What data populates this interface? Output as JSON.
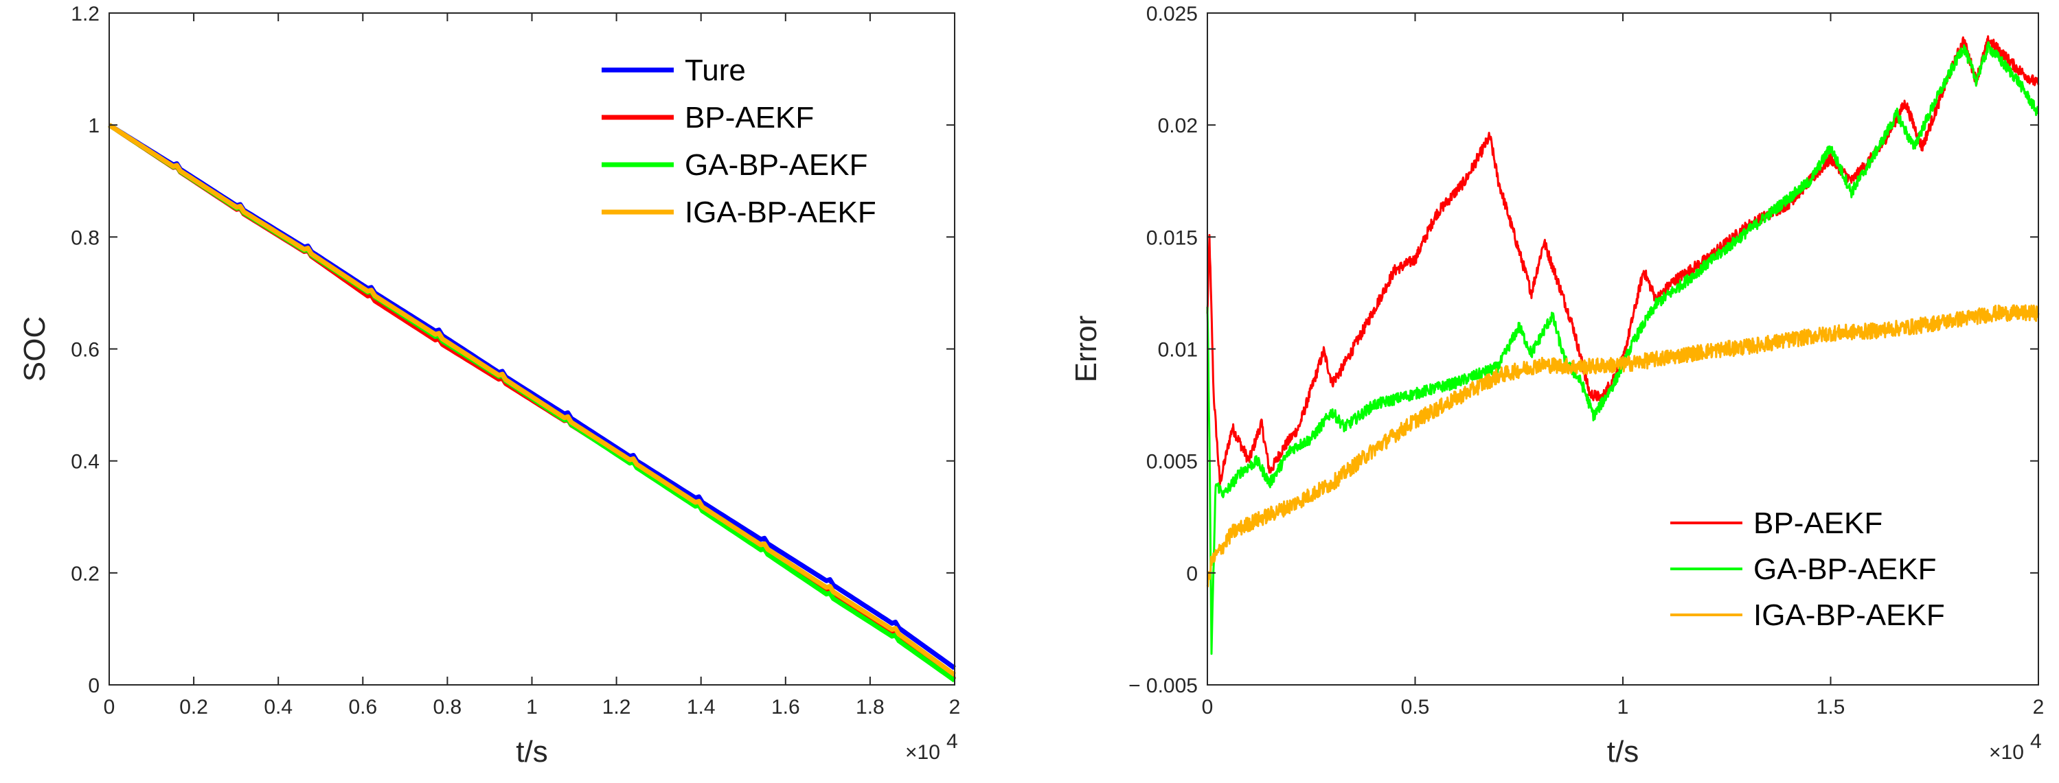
{
  "chart_data": [
    {
      "type": "line",
      "ylabel": "SOC",
      "xlabel": "t/s",
      "x_exponent": "×10",
      "x_exponent_power": "4",
      "xlim": [
        0,
        2
      ],
      "ylim": [
        0,
        1.2
      ],
      "x_ticks": [
        0,
        0.2,
        0.4,
        0.6,
        0.8,
        1,
        1.2,
        1.4,
        1.6,
        1.8,
        2
      ],
      "x_tick_labels": [
        "0",
        "0.2",
        "0.4",
        "0.6",
        "0.8",
        "1",
        "1.2",
        "1.4",
        "1.6",
        "1.8",
        "2"
      ],
      "y_ticks": [
        0,
        0.2,
        0.4,
        0.6,
        0.8,
        1,
        1.2
      ],
      "y_tick_labels": [
        "0",
        "0.2",
        "0.4",
        "0.6",
        "0.8",
        "1",
        "1.2"
      ],
      "legend_position": "top-right",
      "legend": [
        "Ture",
        "BP-AEKF",
        "GA-BP-AEKF",
        "IGA-BP-AEKF"
      ],
      "series": [
        {
          "name": "Ture",
          "color": "#0000ff",
          "x": [
            0,
            0.16,
            0.31,
            0.47,
            0.62,
            0.78,
            0.93,
            1.085,
            1.24,
            1.395,
            1.55,
            1.705,
            1.86,
            2.0
          ],
          "y": [
            1.0,
            0.925,
            0.852,
            0.778,
            0.704,
            0.628,
            0.554,
            0.48,
            0.404,
            0.33,
            0.256,
            0.182,
            0.106,
            0.03
          ]
        },
        {
          "name": "BP-AEKF",
          "color": "#ff0000",
          "x": [
            0,
            0.16,
            0.31,
            0.47,
            0.62,
            0.78,
            0.93,
            1.085,
            1.24,
            1.395,
            1.55,
            1.705,
            1.86,
            2.0
          ],
          "y": [
            1.0,
            0.92,
            0.845,
            0.77,
            0.69,
            0.612,
            0.542,
            0.468,
            0.394,
            0.318,
            0.242,
            0.163,
            0.086,
            0.01
          ]
        },
        {
          "name": "GA-BP-AEKF",
          "color": "#00ff00",
          "x": [
            0,
            0.16,
            0.31,
            0.47,
            0.62,
            0.78,
            0.93,
            1.085,
            1.24,
            1.395,
            1.55,
            1.705,
            1.86,
            2.0
          ],
          "y": [
            1.0,
            0.921,
            0.847,
            0.772,
            0.697,
            0.618,
            0.547,
            0.469,
            0.392,
            0.315,
            0.237,
            0.158,
            0.083,
            0.008
          ]
        },
        {
          "name": "IGA-BP-AEKF",
          "color": "#ffb000",
          "x": [
            0,
            0.16,
            0.31,
            0.47,
            0.62,
            0.78,
            0.93,
            1.085,
            1.24,
            1.395,
            1.55,
            1.705,
            1.86,
            2.0
          ],
          "y": [
            1.0,
            0.922,
            0.849,
            0.774,
            0.699,
            0.622,
            0.549,
            0.473,
            0.398,
            0.322,
            0.246,
            0.17,
            0.095,
            0.018
          ]
        }
      ]
    },
    {
      "type": "line",
      "ylabel": "Error",
      "xlabel": "t/s",
      "x_exponent": "×10",
      "x_exponent_power": "4",
      "xlim": [
        0,
        2
      ],
      "ylim": [
        -0.005,
        0.025
      ],
      "x_ticks": [
        0,
        0.5,
        1,
        1.5,
        2
      ],
      "x_tick_labels": [
        "0",
        "0.5",
        "1",
        "1.5",
        "2"
      ],
      "y_ticks": [
        -0.005,
        0,
        0.005,
        0.01,
        0.015,
        0.02,
        0.025
      ],
      "y_tick_labels": [
        "− 0.005",
        "0",
        "0.005",
        "0.01",
        "0.015",
        "0.02",
        "0.025"
      ],
      "legend_position": "bottom-right",
      "legend": [
        "BP-AEKF",
        "GA-BP-AEKF",
        "IGA-BP-AEKF"
      ],
      "series": [
        {
          "name": "BP-AEKF",
          "color": "#ff0000",
          "x": [
            0,
            0.005,
            0.015,
            0.03,
            0.06,
            0.1,
            0.13,
            0.15,
            0.18,
            0.22,
            0.28,
            0.3,
            0.32,
            0.38,
            0.45,
            0.5,
            0.55,
            0.62,
            0.68,
            0.7,
            0.74,
            0.78,
            0.81,
            0.84,
            0.88,
            0.92,
            0.95,
            1.0,
            1.05,
            1.08,
            1.12,
            1.2,
            1.3,
            1.4,
            1.5,
            1.55,
            1.62,
            1.68,
            1.72,
            1.78,
            1.82,
            1.85,
            1.88,
            1.95,
            2.0
          ],
          "y": [
            0.0115,
            0.015,
            0.008,
            0.004,
            0.0065,
            0.005,
            0.0067,
            0.0045,
            0.0055,
            0.0065,
            0.0099,
            0.0085,
            0.009,
            0.011,
            0.0135,
            0.014,
            0.016,
            0.0175,
            0.0195,
            0.0175,
            0.015,
            0.0125,
            0.0148,
            0.0132,
            0.011,
            0.008,
            0.0078,
            0.0095,
            0.0135,
            0.0122,
            0.013,
            0.014,
            0.0155,
            0.0165,
            0.0185,
            0.0175,
            0.019,
            0.021,
            0.019,
            0.022,
            0.0238,
            0.022,
            0.0238,
            0.0225,
            0.0218
          ]
        },
        {
          "name": "GA-BP-AEKF",
          "color": "#00ff00",
          "x": [
            0,
            0.005,
            0.01,
            0.02,
            0.04,
            0.08,
            0.12,
            0.15,
            0.2,
            0.25,
            0.3,
            0.33,
            0.4,
            0.5,
            0.6,
            0.7,
            0.75,
            0.78,
            0.83,
            0.86,
            0.9,
            0.93,
            0.98,
            1.03,
            1.08,
            1.15,
            1.25,
            1.35,
            1.45,
            1.5,
            1.55,
            1.6,
            1.66,
            1.7,
            1.75,
            1.82,
            1.85,
            1.88,
            1.95,
            2.0
          ],
          "y": [
            0.012,
            0.006,
            -0.0035,
            0.004,
            0.0035,
            0.0045,
            0.005,
            0.004,
            0.0055,
            0.006,
            0.0072,
            0.0065,
            0.0075,
            0.008,
            0.0085,
            0.0092,
            0.011,
            0.0098,
            0.0115,
            0.0095,
            0.0085,
            0.007,
            0.0085,
            0.0105,
            0.012,
            0.013,
            0.0145,
            0.016,
            0.0175,
            0.019,
            0.017,
            0.0185,
            0.0205,
            0.019,
            0.021,
            0.0235,
            0.022,
            0.0235,
            0.022,
            0.0205
          ]
        },
        {
          "name": "IGA-BP-AEKF",
          "color": "#ffb000",
          "x": [
            0,
            0.01,
            0.03,
            0.06,
            0.1,
            0.15,
            0.2,
            0.3,
            0.4,
            0.5,
            0.6,
            0.7,
            0.8,
            0.9,
            1.0,
            1.1,
            1.2,
            1.3,
            1.4,
            1.5,
            1.6,
            1.7,
            1.8,
            1.9,
            2.0
          ],
          "y": [
            -0.0005,
            0.0005,
            0.001,
            0.0018,
            0.0022,
            0.0026,
            0.003,
            0.004,
            0.0055,
            0.0068,
            0.0078,
            0.0088,
            0.0093,
            0.0092,
            0.0093,
            0.0096,
            0.0099,
            0.0101,
            0.0104,
            0.0107,
            0.0108,
            0.011,
            0.0113,
            0.0116,
            0.0116
          ]
        }
      ]
    }
  ]
}
